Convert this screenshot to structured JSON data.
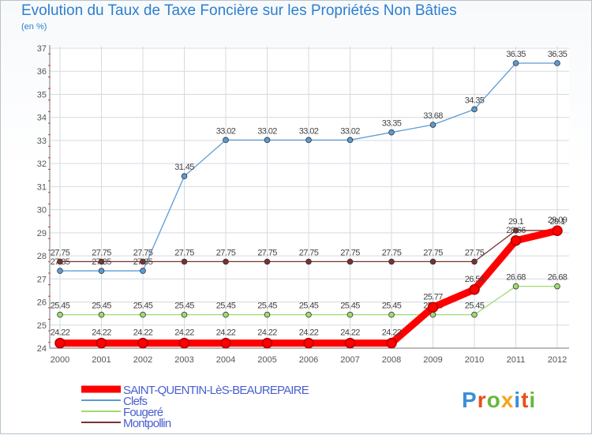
{
  "header": {
    "title": "Evolution du Taux de Taxe Foncière sur les Propriétés Non Bâties",
    "unit": "(en %)"
  },
  "logo": {
    "text": "Proxiti",
    "colors": [
      "#3a8fd6",
      "#e84f1b",
      "#66b83a",
      "#f5a31c",
      "#3a8fd6",
      "#e84f1b",
      "#66b83a"
    ]
  },
  "chart_data": {
    "type": "line",
    "title": "Evolution du Taux de Taxe Foncière sur les Propriétés Non Bâties",
    "ylabel": "(en %)",
    "x": [
      "2000",
      "2001",
      "2002",
      "2003",
      "2004",
      "2005",
      "2006",
      "2007",
      "2008",
      "2009",
      "2010",
      "2011",
      "2012"
    ],
    "ylim": [
      24,
      37
    ],
    "yticks": [
      24,
      25,
      26,
      27,
      28,
      29,
      30,
      31,
      32,
      33,
      34,
      35,
      36,
      37
    ],
    "series": [
      {
        "name": "SAINT-QUENTIN-LèS-BEAUREPAIRE",
        "color": "#ff0000",
        "values": [
          24.22,
          24.22,
          24.22,
          24.22,
          24.22,
          24.22,
          24.22,
          24.22,
          24.22,
          25.77,
          26.54,
          28.66,
          29.09
        ],
        "labels": [
          "24.22",
          "24.22",
          "24.22",
          "24.22",
          "24.22",
          "24.22",
          "24.22",
          "24.22",
          "24.22",
          "25.77",
          "26.54",
          "28.66",
          "29.09"
        ]
      },
      {
        "name": "Clefs",
        "color": "#5b9bd5",
        "values": [
          27.35,
          27.35,
          27.35,
          31.45,
          33.02,
          33.02,
          33.02,
          33.02,
          33.35,
          33.68,
          34.35,
          36.35,
          36.35
        ],
        "labels": [
          "27.35",
          "27.35",
          "27.35",
          "31.45",
          "33.02",
          "33.02",
          "33.02",
          "33.02",
          "33.35",
          "33.68",
          "34.35",
          "36.35",
          "36.35"
        ]
      },
      {
        "name": "Fougeré",
        "color": "#9fdc6f",
        "values": [
          25.45,
          25.45,
          25.45,
          25.45,
          25.45,
          25.45,
          25.45,
          25.45,
          25.45,
          25.45,
          25.45,
          26.68,
          26.68
        ],
        "labels": [
          "25.45",
          "25.45",
          "25.45",
          "25.45",
          "25.45",
          "25.45",
          "25.45",
          "25.45",
          "25.45",
          "25.45",
          "25.45",
          "26.68",
          "26.68"
        ]
      },
      {
        "name": "Montpollin",
        "color": "#7a3232",
        "values": [
          27.75,
          27.75,
          27.75,
          27.75,
          27.75,
          27.75,
          27.75,
          27.75,
          27.75,
          27.75,
          27.75,
          29.1,
          29.1
        ],
        "labels": [
          "27.75",
          "27.75",
          "27.75",
          "27.75",
          "27.75",
          "27.75",
          "27.75",
          "27.75",
          "27.75",
          "27.75",
          "27.75",
          "29.1",
          "29.1"
        ]
      }
    ],
    "legend": "bottom-left"
  }
}
